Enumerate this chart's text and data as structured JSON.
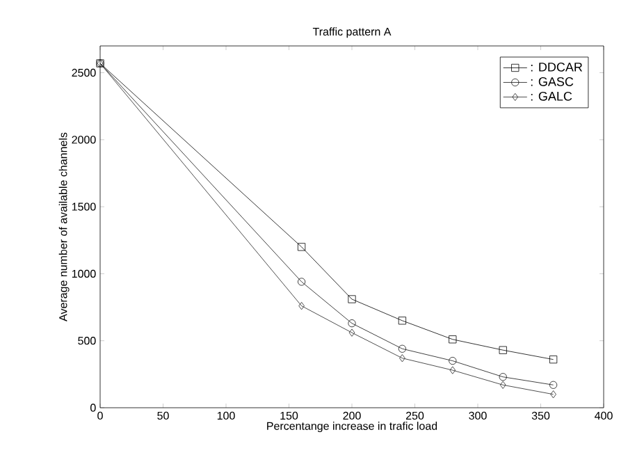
{
  "chart_data": {
    "type": "line",
    "title": "Traffic pattern A",
    "xlabel": "Percentange increase in trafic load",
    "ylabel": "Average number of available channels",
    "x": [
      0,
      160,
      200,
      240,
      280,
      320,
      360
    ],
    "series": [
      {
        "name": ": DDCAR",
        "color": "#000000",
        "marker": "square",
        "values": [
          2570,
          1200,
          810,
          650,
          510,
          430,
          360
        ]
      },
      {
        "name": ": GASC",
        "color": "#111111",
        "marker": "circle",
        "values": [
          2570,
          940,
          630,
          440,
          350,
          230,
          170
        ]
      },
      {
        "name": ": GALC",
        "color": "#222222",
        "marker": "diamond",
        "values": [
          2570,
          760,
          560,
          370,
          280,
          170,
          100
        ]
      }
    ],
    "xlim": [
      0,
      400
    ],
    "ylim": [
      0,
      2700
    ],
    "xticks": [
      0,
      50,
      100,
      150,
      200,
      250,
      300,
      350,
      400
    ],
    "yticks": [
      0,
      500,
      1000,
      1500,
      2000,
      2500
    ],
    "grid": false,
    "legend": "top right",
    "line_style": "solid"
  }
}
